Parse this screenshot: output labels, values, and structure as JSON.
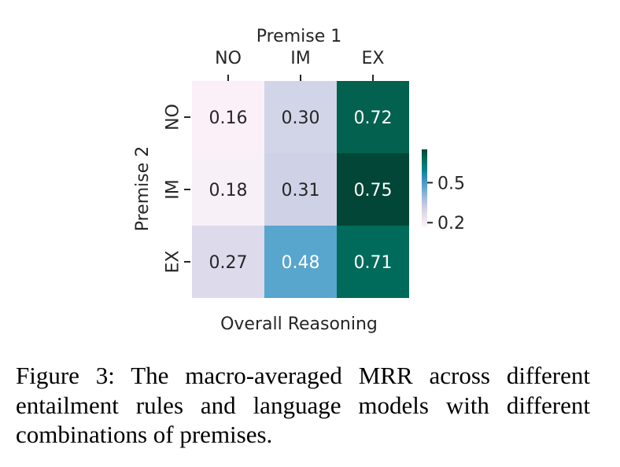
{
  "chart_data": {
    "type": "heatmap",
    "title": "Premise 1",
    "xlabel": "Premise 1",
    "ylabel": "Premise 2",
    "bottom_label": "Overall Reasoning",
    "x_categories": [
      "NO",
      "IM",
      "EX"
    ],
    "y_categories": [
      "NO",
      "IM",
      "EX"
    ],
    "values": [
      [
        0.16,
        0.3,
        0.72
      ],
      [
        0.18,
        0.31,
        0.75
      ],
      [
        0.27,
        0.48,
        0.71
      ]
    ],
    "value_labels": [
      [
        "0.16",
        "0.30",
        "0.72"
      ],
      [
        "0.18",
        "0.31",
        "0.75"
      ],
      [
        "0.27",
        "0.48",
        "0.71"
      ]
    ],
    "colormap": "PuBuGn",
    "vmin": 0.16,
    "vmax": 0.75,
    "colorbar_ticks": [
      0.2,
      0.5
    ],
    "colorbar_tick_labels": [
      "0.2",
      "0.5"
    ]
  },
  "cell_colors": [
    [
      "#fbf0f7",
      "#d2d4e8",
      "#02614f"
    ],
    [
      "#f7f0f7",
      "#cfd2e6",
      "#014636"
    ],
    [
      "#dcdaeb",
      "#58a5cd",
      "#016b5b"
    ]
  ],
  "value_text_colors": [
    [
      "#262626",
      "#262626",
      "#ffffff"
    ],
    [
      "#262626",
      "#262626",
      "#ffffff"
    ],
    [
      "#262626",
      "#ffffff",
      "#ffffff"
    ]
  ],
  "colorbar_colors": [
    "#fff7fb",
    "#ece2f0",
    "#d0d1e6",
    "#a6bddb",
    "#67a9cf",
    "#3690c0",
    "#02818a",
    "#016c59",
    "#014636"
  ],
  "caption": "Figure 3: The macro-averaged MRR across different entailment rules and language models with different combinations of premises."
}
